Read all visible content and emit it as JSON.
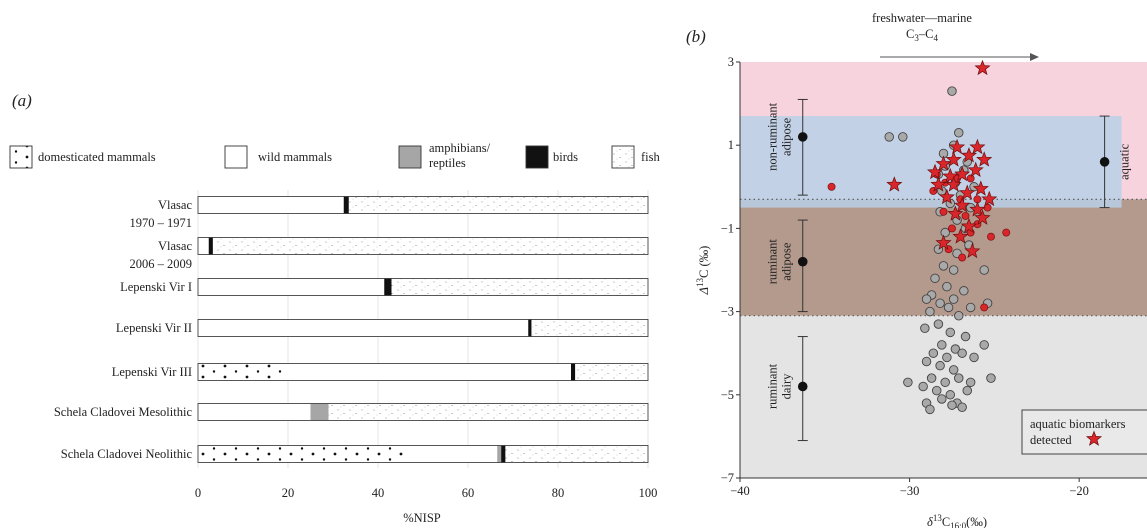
{
  "chart_data": [
    {
      "type": "bar",
      "stacked": true,
      "orientation": "horizontal",
      "panel_label": "(a)",
      "xlabel": "%NISP",
      "xlim": [
        0,
        100
      ],
      "xticks": [
        "0",
        "20",
        "40",
        "60",
        "80",
        "100"
      ],
      "grid": "vertical",
      "legend_position": "top",
      "categories": [
        {
          "line1": "Vlasac",
          "line2": "1970 – 1971"
        },
        {
          "line1": "Vlasac",
          "line2": "2006 – 2009"
        },
        {
          "line1": "Lepenski Vir I",
          "line2": ""
        },
        {
          "line1": "Lepenski Vir II",
          "line2": ""
        },
        {
          "line1": "Lepenski Vir III",
          "line2": ""
        },
        {
          "line1": "Schela Cladovei Mesolithic",
          "line2": ""
        },
        {
          "line1": "Schela Cladovei Neolithic",
          "line2": ""
        }
      ],
      "series": [
        {
          "name": "domesticated mammals",
          "name2": "",
          "pattern": "dots-large",
          "values": [
            0,
            0,
            0,
            0,
            19,
            0,
            46
          ]
        },
        {
          "name": "wild mammals",
          "name2": "",
          "pattern": "white",
          "values": [
            32.5,
            2.5,
            41.5,
            73.5,
            64,
            25,
            20.5
          ]
        },
        {
          "name": "amphibians/",
          "name2": "reptiles",
          "pattern": "grey",
          "values": [
            0,
            0,
            0,
            0,
            0,
            4,
            1
          ]
        },
        {
          "name": "birds",
          "name2": "",
          "pattern": "black",
          "values": [
            1,
            0.8,
            1.5,
            0.6,
            0.8,
            0,
            0.8
          ]
        },
        {
          "name": "fish",
          "name2": "",
          "pattern": "dots-small",
          "values": [
            66.5,
            96.7,
            57,
            25.9,
            16.2,
            71,
            31.7
          ]
        }
      ]
    },
    {
      "type": "scatter",
      "panel_label": "(b)",
      "top_annotation": {
        "line1": "freshwater—marine",
        "c": "C",
        "sub3": "3",
        "dash": "–",
        "sub4": "4"
      },
      "xlabel": {
        "delta": "δ",
        "sup": "13",
        "c": "C",
        "sub": "16:0",
        "unit": "(‰)"
      },
      "ylabel": {
        "delta": "Δ",
        "sup": "13",
        "c": "C",
        "unit": "(‰)"
      },
      "xlim": [
        -40,
        -16
      ],
      "ylim": [
        -7,
        3
      ],
      "xticks": [
        -40,
        -30,
        -20
      ],
      "yticks": [
        3,
        1,
        -1,
        -3,
        -5,
        -7
      ],
      "bands": [
        {
          "y0": -0.3,
          "y1": 3,
          "color": "#f7d3dd"
        },
        {
          "y0": -3.1,
          "y1": -0.3,
          "color": "#b49a8d"
        },
        {
          "y0": -7,
          "y1": -3.1,
          "color": "#e4e4e4"
        },
        {
          "y0": -0.5,
          "y1": 1.7,
          "color": "#b8d0e8",
          "x1": -17.5,
          "opacity": 0.85
        }
      ],
      "dotted_lines_y": [
        -0.3,
        -3.1
      ],
      "reference_ranges": [
        {
          "label1": "non-ruminant",
          "label2": "adipose",
          "x": -36.3,
          "y": 1.2,
          "ylow": -0.2,
          "yhigh": 2.1
        },
        {
          "label1": "ruminant",
          "label2": "adipose",
          "x": -36.3,
          "y": -1.8,
          "ylow": -3.0,
          "yhigh": -0.8
        },
        {
          "label1": "ruminant",
          "label2": "dairy",
          "x": -36.3,
          "y": -4.8,
          "ylow": -6.1,
          "yhigh": -3.6
        },
        {
          "label1": "aquatic",
          "label2": "",
          "x": -18.5,
          "y": 0.6,
          "ylow": -0.5,
          "yhigh": 1.7
        }
      ],
      "legend": {
        "line1": "aquatic biomarkers",
        "line2": "detected",
        "position": "bottom-right"
      },
      "grey_points": [
        [
          -27.5,
          2.3
        ],
        [
          -31.2,
          1.2
        ],
        [
          -30.4,
          1.2
        ],
        [
          -27.1,
          1.3
        ],
        [
          -27.4,
          1.0
        ],
        [
          -28.0,
          0.8
        ],
        [
          -26.6,
          0.6
        ],
        [
          -27.9,
          0.5
        ],
        [
          -26.8,
          0.4
        ],
        [
          -28.3,
          0.3
        ],
        [
          -27.3,
          0.1
        ],
        [
          -26.2,
          0.0
        ],
        [
          -28.1,
          -0.1
        ],
        [
          -27.0,
          -0.2
        ],
        [
          -27.6,
          -0.4
        ],
        [
          -26.4,
          -0.5
        ],
        [
          -28.2,
          -0.6
        ],
        [
          -27.2,
          -0.8
        ],
        [
          -26.7,
          -1.0
        ],
        [
          -27.9,
          -1.1
        ],
        [
          -28.3,
          -1.5
        ],
        [
          -27.2,
          -1.6
        ],
        [
          -26.5,
          -1.4
        ],
        [
          -28.0,
          -1.9
        ],
        [
          -27.4,
          -2.0
        ],
        [
          -25.6,
          -2.0
        ],
        [
          -28.5,
          -2.2
        ],
        [
          -27.8,
          -2.4
        ],
        [
          -26.8,
          -2.5
        ],
        [
          -28.7,
          -2.6
        ],
        [
          -27.4,
          -2.7
        ],
        [
          -29.0,
          -2.7
        ],
        [
          -28.2,
          -2.8
        ],
        [
          -27.7,
          -2.9
        ],
        [
          -26.4,
          -2.9
        ],
        [
          -25.4,
          -2.8
        ],
        [
          -28.8,
          -3.0
        ],
        [
          -27.1,
          -3.1
        ],
        [
          -28.3,
          -3.3
        ],
        [
          -29.1,
          -3.4
        ],
        [
          -27.6,
          -3.5
        ],
        [
          -26.7,
          -3.6
        ],
        [
          -28.1,
          -3.8
        ],
        [
          -27.3,
          -3.9
        ],
        [
          -25.6,
          -3.8
        ],
        [
          -28.6,
          -4.0
        ],
        [
          -27.8,
          -4.1
        ],
        [
          -26.9,
          -4.0
        ],
        [
          -26.2,
          -4.1
        ],
        [
          -29.0,
          -4.2
        ],
        [
          -28.2,
          -4.3
        ],
        [
          -27.4,
          -4.4
        ],
        [
          -28.7,
          -4.6
        ],
        [
          -27.9,
          -4.7
        ],
        [
          -27.1,
          -4.6
        ],
        [
          -26.4,
          -4.7
        ],
        [
          -25.2,
          -4.6
        ],
        [
          -30.1,
          -4.7
        ],
        [
          -29.2,
          -4.8
        ],
        [
          -28.4,
          -4.9
        ],
        [
          -27.6,
          -5.0
        ],
        [
          -26.6,
          -4.9
        ],
        [
          -29.0,
          -5.2
        ],
        [
          -28.1,
          -5.1
        ],
        [
          -27.2,
          -5.2
        ],
        [
          -26.9,
          -5.3
        ],
        [
          -27.5,
          -5.25
        ],
        [
          -28.8,
          -5.35
        ]
      ],
      "red_points": [
        [
          -34.6,
          0.0
        ],
        [
          -28.4,
          0.3
        ],
        [
          -27.9,
          0.1
        ],
        [
          -27.2,
          0.2
        ],
        [
          -26.4,
          0.2
        ],
        [
          -28.6,
          -0.1
        ],
        [
          -27.0,
          -0.3
        ],
        [
          -26.0,
          -0.3
        ],
        [
          -25.4,
          -0.5
        ],
        [
          -28.0,
          -0.6
        ],
        [
          -26.7,
          -0.7
        ],
        [
          -26.0,
          -0.9
        ],
        [
          -27.5,
          -1.0
        ],
        [
          -26.4,
          -1.1
        ],
        [
          -25.2,
          -1.2
        ],
        [
          -27.7,
          -1.5
        ],
        [
          -26.9,
          -1.7
        ],
        [
          -25.6,
          -2.9
        ],
        [
          -24.3,
          -1.1
        ]
      ],
      "red_stars": [
        [
          -25.7,
          2.85
        ],
        [
          -30.9,
          0.05
        ],
        [
          -28.5,
          0.35
        ],
        [
          -27.2,
          0.95
        ],
        [
          -26.5,
          0.75
        ],
        [
          -28.0,
          0.55
        ],
        [
          -27.6,
          0.25
        ],
        [
          -26.9,
          0.3
        ],
        [
          -26.1,
          0.4
        ],
        [
          -28.3,
          0.05
        ],
        [
          -27.4,
          0.05
        ],
        [
          -26.6,
          -0.15
        ],
        [
          -25.8,
          -0.05
        ],
        [
          -27.8,
          -0.25
        ],
        [
          -26.9,
          -0.45
        ],
        [
          -26.0,
          -0.55
        ],
        [
          -27.3,
          -0.65
        ],
        [
          -25.7,
          -0.75
        ],
        [
          -26.5,
          -0.95
        ],
        [
          -28.0,
          -1.35
        ],
        [
          -27.0,
          -1.2
        ],
        [
          -26.3,
          -1.55
        ],
        [
          -25.6,
          0.65
        ],
        [
          -25.3,
          -0.3
        ],
        [
          -27.4,
          0.65
        ],
        [
          -26.0,
          0.95
        ]
      ]
    }
  ]
}
